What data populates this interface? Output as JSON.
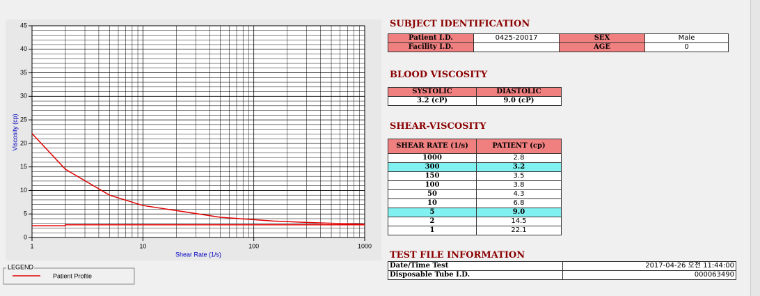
{
  "chart_data": {
    "type": "line",
    "x_label": "Shear Rate (1/s)",
    "y_label": "Viscosity (cp)",
    "xlim": [
      1,
      1000
    ],
    "xticks": [
      1,
      10,
      100,
      1000
    ],
    "log_x": true,
    "ylim": [
      0,
      45
    ],
    "yticks": [
      0,
      5,
      10,
      15,
      20,
      25,
      30,
      35,
      40,
      45
    ],
    "grid": true,
    "legend_title": "LEGEND",
    "series": [
      {
        "name": "Patient Profile",
        "color": "#e00000",
        "x": [
          1,
          2,
          5,
          10,
          50,
          100,
          150,
          300,
          1000
        ],
        "values": [
          22.1,
          14.5,
          9.0,
          6.8,
          4.3,
          3.8,
          3.5,
          3.2,
          2.8
        ]
      },
      {
        "color": "#e00000",
        "x": [
          1,
          2,
          2,
          1000
        ],
        "values": [
          2.5,
          2.5,
          2.7,
          2.7
        ]
      }
    ]
  },
  "subject": {
    "title": "SUBJECT IDENTIFICATION",
    "patient_id_label": "Patient I.D.",
    "patient_id": "0425-20017",
    "sex_label": "SEX",
    "sex": "Male",
    "facility_label": "Facility I.D.",
    "age_label": "AGE",
    "age": "0"
  },
  "blood": {
    "title": "BLOOD VISCOSITY",
    "headers": [
      "SYSTOLIC",
      "DIASTOLIC"
    ],
    "values": [
      "3.2 (cP)",
      "9.0 (cP)"
    ]
  },
  "shear": {
    "title": "SHEAR-VISCOSITY",
    "headers": [
      "SHEAR RATE (1/s)",
      "PATIENT (cp)"
    ],
    "rows": [
      {
        "rate": "1000",
        "patient": "2.8",
        "highlight": false
      },
      {
        "rate": "300",
        "patient": "3.2",
        "highlight": true
      },
      {
        "rate": "150",
        "patient": "3.5",
        "highlight": false
      },
      {
        "rate": "100",
        "patient": "3.8",
        "highlight": false
      },
      {
        "rate": "50",
        "patient": "4.3",
        "highlight": false
      },
      {
        "rate": "10",
        "patient": "6.8",
        "highlight": false
      },
      {
        "rate": "5",
        "patient": "9.0",
        "highlight": true
      },
      {
        "rate": "2",
        "patient": "14.5",
        "highlight": false
      },
      {
        "rate": "1",
        "patient": "22.1",
        "highlight": false
      }
    ]
  },
  "test_file": {
    "title": "TEST FILE INFORMATION",
    "date_label": "Date/Time Test",
    "date": "2017-04-26  오전 11:44:00",
    "tube_label": "Disposable Tube I.D.",
    "tube": "000063490"
  }
}
